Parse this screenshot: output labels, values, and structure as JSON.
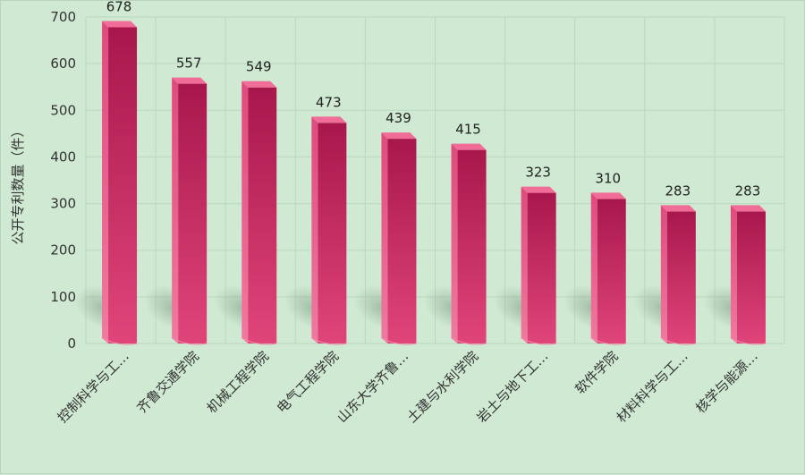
{
  "chart_data": {
    "type": "bar",
    "title": "",
    "xlabel": "",
    "ylabel": "公开专利数量（件）",
    "ylim": [
      0,
      700
    ],
    "yticks": [
      0,
      100,
      200,
      300,
      400,
      500,
      600,
      700
    ],
    "grid": true,
    "legend": "none",
    "categories": [
      "控制科学与工…",
      "齐鲁交通学院",
      "机械工程学院",
      "电气工程学院",
      "山东大学齐鲁…",
      "土建与水利学院",
      "岩土与地下工…",
      "软件学院",
      "材料科学与工…",
      "核学与能源…"
    ],
    "values": [
      678,
      557,
      549,
      473,
      439,
      415,
      323,
      310,
      283,
      283
    ],
    "colors": {
      "bar_front_top": "#a8174c",
      "bar_front_bottom": "#e0457a",
      "bar_side": "#7a0f37",
      "bar_top": "#ef6d96",
      "grid": "#b8d9bd",
      "background": "#cfe9d2"
    }
  }
}
